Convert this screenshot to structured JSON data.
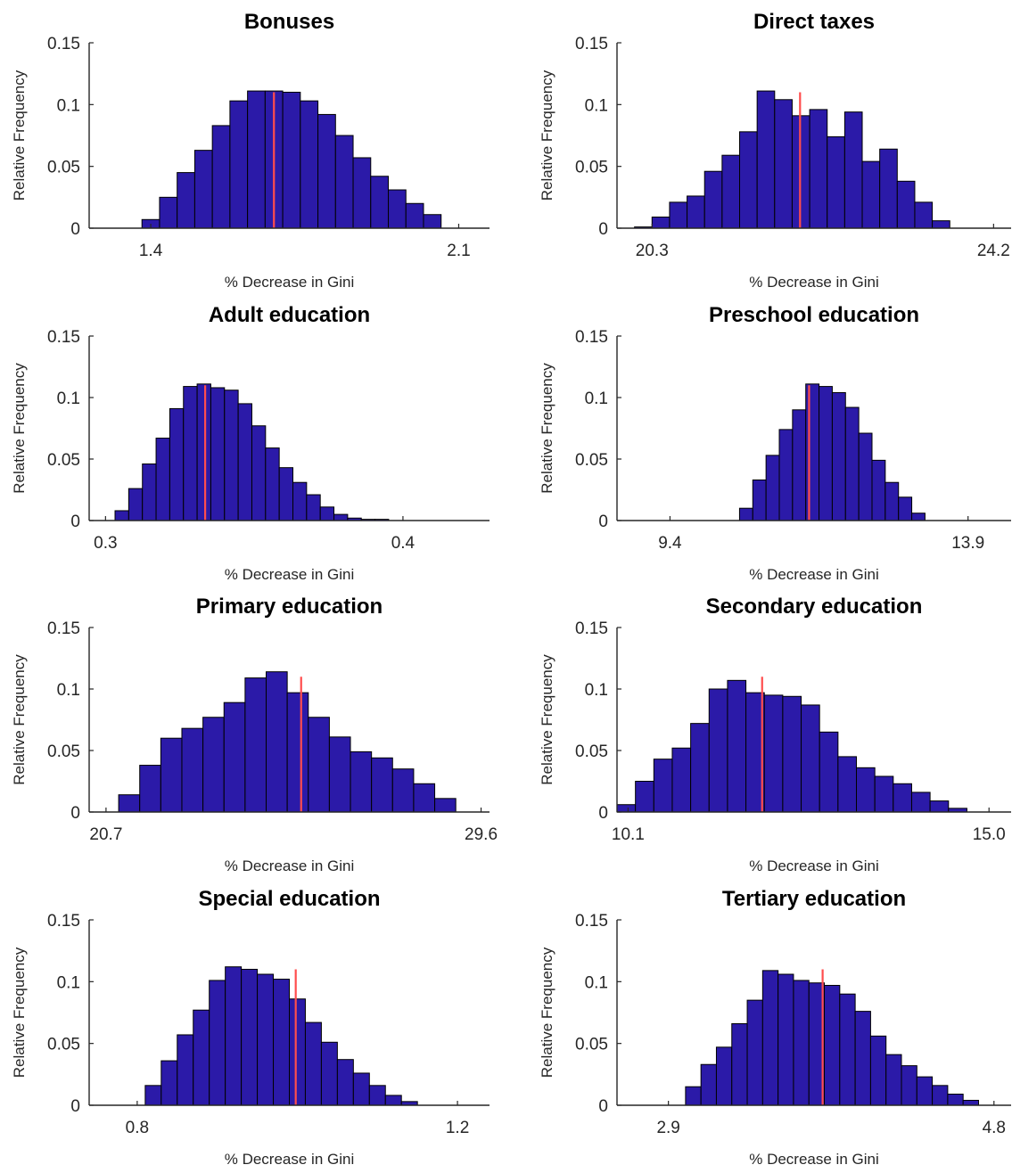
{
  "colors": {
    "bar_fill": "#2b1aa8",
    "bar_edge": "#000000",
    "reference_line": "#ff4d4d"
  },
  "chart_data": [
    {
      "type": "bar",
      "title": "Bonuses",
      "xlabel": "% Decrease in Gini",
      "ylabel": "Relative Frequency",
      "yticks": [
        "0",
        "0.05",
        "0.1",
        "0.15"
      ],
      "ylim": [
        0,
        0.15
      ],
      "xtick_labels": [
        "1.4",
        "2.1"
      ],
      "xtick_values": [
        1.4,
        2.1
      ],
      "xlim": [
        1.26,
        2.17
      ],
      "bin_edges": [
        1.38,
        1.42,
        1.46,
        1.5,
        1.54,
        1.58,
        1.62,
        1.66,
        1.7,
        1.74,
        1.78,
        1.82,
        1.86,
        1.9,
        1.94,
        1.98,
        2.02,
        2.06
      ],
      "values": [
        0.007,
        0.025,
        0.045,
        0.063,
        0.083,
        0.103,
        0.111,
        0.111,
        0.11,
        0.103,
        0.092,
        0.075,
        0.057,
        0.042,
        0.031,
        0.02,
        0.011
      ],
      "reference_value": 1.68
    },
    {
      "type": "bar",
      "title": "Direct taxes",
      "xlabel": "% Decrease in Gini",
      "ylabel": "Relative Frequency",
      "yticks": [
        "0",
        "0.05",
        "0.1",
        "0.15"
      ],
      "ylim": [
        0,
        0.15
      ],
      "xtick_labels": [
        "20.3",
        "24.2"
      ],
      "xtick_values": [
        20.3,
        24.2
      ],
      "xlim": [
        19.9,
        24.4
      ],
      "bin_edges": [
        20.1,
        20.3,
        20.5,
        20.7,
        20.9,
        21.1,
        21.3,
        21.5,
        21.7,
        21.9,
        22.1,
        22.3,
        22.5,
        22.7,
        22.9,
        23.1,
        23.3,
        23.5,
        23.7
      ],
      "values": [
        0.001,
        0.009,
        0.021,
        0.026,
        0.046,
        0.059,
        0.078,
        0.111,
        0.104,
        0.091,
        0.096,
        0.074,
        0.094,
        0.054,
        0.064,
        0.038,
        0.021,
        0.006
      ],
      "reference_value": 21.99
    },
    {
      "type": "bar",
      "title": "Adult education",
      "xlabel": "% Decrease in Gini",
      "ylabel": "Relative Frequency",
      "yticks": [
        "0",
        "0.05",
        "0.1",
        "0.15"
      ],
      "ylim": [
        0,
        0.15
      ],
      "xtick_labels": [
        "0.3",
        "0.4"
      ],
      "xtick_values": [
        0.3,
        0.4
      ],
      "xlim": [
        0.2945,
        0.4291
      ],
      "bin_edges": [
        0.3032,
        0.3078,
        0.3124,
        0.317,
        0.3216,
        0.3262,
        0.3308,
        0.3354,
        0.34,
        0.3446,
        0.3492,
        0.3538,
        0.3584,
        0.363,
        0.3676,
        0.3722,
        0.3768,
        0.3814,
        0.386,
        0.3906,
        0.3952
      ],
      "values": [
        0.008,
        0.026,
        0.046,
        0.067,
        0.091,
        0.109,
        0.111,
        0.108,
        0.106,
        0.095,
        0.077,
        0.059,
        0.043,
        0.031,
        0.021,
        0.011,
        0.005,
        0.002,
        0.001,
        0.001
      ],
      "reference_value": 0.3335
    },
    {
      "type": "bar",
      "title": "Preschool education",
      "xlabel": "% Decrease in Gini",
      "ylabel": "Relative Frequency",
      "yticks": [
        "0",
        "0.05",
        "0.1",
        "0.15"
      ],
      "ylim": [
        0,
        0.15
      ],
      "xtick_labels": [
        "9.4",
        "13.9"
      ],
      "xtick_values": [
        9.4,
        13.9
      ],
      "xlim": [
        8.6,
        14.55
      ],
      "bin_edges": [
        10.45,
        10.65,
        10.85,
        11.05,
        11.25,
        11.45,
        11.65,
        11.85,
        12.05,
        12.25,
        12.45,
        12.65,
        12.85,
        13.05,
        13.25
      ],
      "values": [
        0.01,
        0.033,
        0.053,
        0.074,
        0.09,
        0.111,
        0.109,
        0.104,
        0.092,
        0.071,
        0.049,
        0.031,
        0.019,
        0.006
      ],
      "reference_value": 11.5
    },
    {
      "type": "bar",
      "title": "Primary education",
      "xlabel": "% Decrease in Gini",
      "ylabel": "Relative Frequency",
      "yticks": [
        "0",
        "0.05",
        "0.1",
        "0.15"
      ],
      "ylim": [
        0,
        0.15
      ],
      "xtick_labels": [
        "20.7",
        "29.6"
      ],
      "xtick_values": [
        20.7,
        29.6
      ],
      "xlim": [
        20.3,
        29.8
      ],
      "bin_edges": [
        21.0,
        21.5,
        22.0,
        22.5,
        23.0,
        23.5,
        24.0,
        24.5,
        25.0,
        25.5,
        26.0,
        26.5,
        27.0,
        27.5,
        28.0,
        28.5,
        29.0
      ],
      "values": [
        0.014,
        0.038,
        0.06,
        0.068,
        0.077,
        0.089,
        0.109,
        0.114,
        0.097,
        0.077,
        0.061,
        0.049,
        0.044,
        0.035,
        0.023,
        0.011
      ],
      "reference_value": 25.33
    },
    {
      "type": "bar",
      "title": "Secondary education",
      "xlabel": "% Decrease in Gini",
      "ylabel": "Relative Frequency",
      "yticks": [
        "0",
        "0.05",
        "0.1",
        "0.15"
      ],
      "ylim": [
        0,
        0.15
      ],
      "xtick_labels": [
        "10.1",
        "15.0"
      ],
      "xtick_values": [
        10.1,
        15.0
      ],
      "xlim": [
        9.95,
        15.3
      ],
      "bin_edges": [
        9.95,
        10.2,
        10.45,
        10.7,
        10.95,
        11.2,
        11.45,
        11.7,
        11.95,
        12.2,
        12.45,
        12.7,
        12.95,
        13.2,
        13.45,
        13.7,
        13.95,
        14.2,
        14.45,
        14.7
      ],
      "values": [
        0.006,
        0.025,
        0.043,
        0.052,
        0.072,
        0.1,
        0.107,
        0.097,
        0.095,
        0.094,
        0.087,
        0.065,
        0.045,
        0.036,
        0.029,
        0.023,
        0.016,
        0.009,
        0.003
      ],
      "reference_value": 11.92
    },
    {
      "type": "bar",
      "title": "Special education",
      "xlabel": "% Decrease in Gini",
      "ylabel": "Relative Frequency",
      "yticks": [
        "0",
        "0.05",
        "0.1",
        "0.15"
      ],
      "ylim": [
        0,
        0.15
      ],
      "xtick_labels": [
        "0.8",
        "1.2"
      ],
      "xtick_values": [
        0.8,
        1.2
      ],
      "xlim": [
        0.74,
        1.24
      ],
      "bin_edges": [
        0.81,
        0.83,
        0.85,
        0.87,
        0.89,
        0.91,
        0.93,
        0.95,
        0.97,
        0.99,
        1.01,
        1.03,
        1.05,
        1.07,
        1.09,
        1.11,
        1.13,
        1.15
      ],
      "values": [
        0.016,
        0.036,
        0.057,
        0.077,
        0.101,
        0.112,
        0.11,
        0.106,
        0.102,
        0.086,
        0.067,
        0.051,
        0.037,
        0.026,
        0.016,
        0.008,
        0.003
      ],
      "reference_value": 0.998
    },
    {
      "type": "bar",
      "title": "Tertiary education",
      "xlabel": "% Decrease in Gini",
      "ylabel": "Relative Frequency",
      "yticks": [
        "0",
        "0.05",
        "0.1",
        "0.15"
      ],
      "ylim": [
        0,
        0.15
      ],
      "xtick_labels": [
        "2.9",
        "4.8"
      ],
      "xtick_values": [
        2.9,
        4.8
      ],
      "xlim": [
        2.6,
        4.9
      ],
      "bin_edges": [
        3.0,
        3.09,
        3.18,
        3.27,
        3.36,
        3.45,
        3.54,
        3.63,
        3.72,
        3.81,
        3.9,
        3.99,
        4.08,
        4.17,
        4.26,
        4.35,
        4.44,
        4.53,
        4.62,
        4.71
      ],
      "values": [
        0.015,
        0.033,
        0.047,
        0.066,
        0.085,
        0.109,
        0.106,
        0.101,
        0.099,
        0.097,
        0.09,
        0.076,
        0.056,
        0.041,
        0.032,
        0.023,
        0.016,
        0.009,
        0.004
      ],
      "reference_value": 3.8
    }
  ]
}
